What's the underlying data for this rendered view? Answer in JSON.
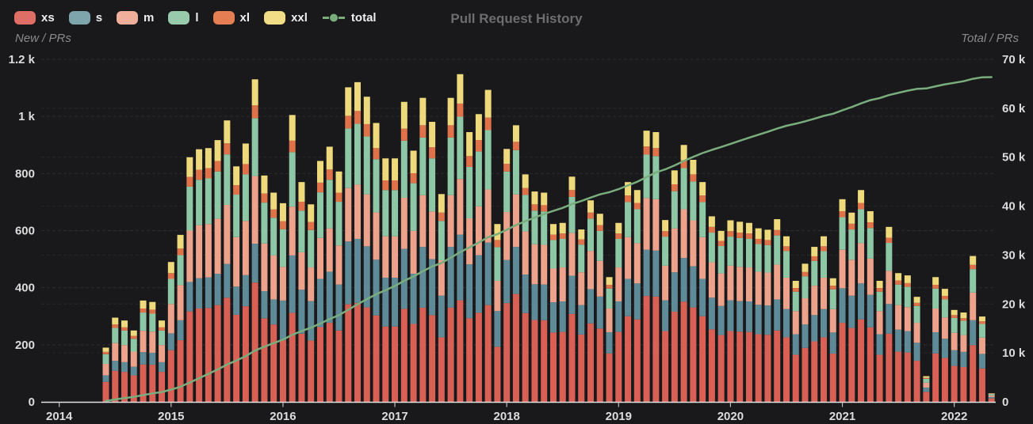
{
  "title": "Pull Request History",
  "left_axis": {
    "title": "New / PRs",
    "max": 1200,
    "tick_values": [
      0,
      200,
      400,
      600,
      800,
      1000,
      1200
    ],
    "tick_labels": [
      "0",
      "200",
      "400",
      "600",
      "800",
      "1 k",
      "1.2 k"
    ]
  },
  "right_axis": {
    "title": "Total / PRs",
    "max": 70000,
    "tick_values": [
      0,
      10000,
      20000,
      30000,
      40000,
      50000,
      60000,
      70000
    ],
    "tick_labels": [
      "0",
      "10 k",
      "20 k",
      "30 k",
      "40 k",
      "50 k",
      "60 k",
      "70 k"
    ]
  },
  "x_axis": {
    "year_labels": [
      "2014",
      "2015",
      "2016",
      "2017",
      "2018",
      "2019",
      "2020",
      "2021",
      "2022"
    ]
  },
  "legend": [
    {
      "label": "xs",
      "swatch": "#df6e66",
      "type": "rect"
    },
    {
      "label": "s",
      "swatch": "#7fa5ac",
      "type": "rect"
    },
    {
      "label": "m",
      "swatch": "#efaf9b",
      "type": "rect"
    },
    {
      "label": "l",
      "swatch": "#97cbac",
      "type": "rect"
    },
    {
      "label": "xl",
      "swatch": "#e57e52",
      "type": "rect"
    },
    {
      "label": "xxl",
      "swatch": "#f0dd85",
      "type": "rect"
    },
    {
      "label": "total",
      "swatch": "#79ad7d",
      "type": "line"
    }
  ],
  "chart_data": {
    "type": "bar",
    "subtype": "stacked-bars-with-cumulative-line",
    "title": "Pull Request History",
    "xlabel": "",
    "ylabel_left": "New / PRs",
    "ylabel_right": "Total / PRs",
    "ylim_left": [
      0,
      1200
    ],
    "ylim_right": [
      0,
      70000
    ],
    "grid": "dashed-faint",
    "legend_position": "top-left",
    "months": [
      "2014-06",
      "2014-07",
      "2014-08",
      "2014-09",
      "2014-10",
      "2014-11",
      "2014-12",
      "2015-01",
      "2015-02",
      "2015-03",
      "2015-04",
      "2015-05",
      "2015-06",
      "2015-07",
      "2015-08",
      "2015-09",
      "2015-10",
      "2015-11",
      "2015-12",
      "2016-01",
      "2016-02",
      "2016-03",
      "2016-04",
      "2016-05",
      "2016-06",
      "2016-07",
      "2016-08",
      "2016-09",
      "2016-10",
      "2016-11",
      "2016-12",
      "2017-01",
      "2017-02",
      "2017-03",
      "2017-04",
      "2017-05",
      "2017-06",
      "2017-07",
      "2017-08",
      "2017-09",
      "2017-10",
      "2017-11",
      "2017-12",
      "2018-01",
      "2018-02",
      "2018-03",
      "2018-04",
      "2018-05",
      "2018-06",
      "2018-07",
      "2018-08",
      "2018-09",
      "2018-10",
      "2018-11",
      "2018-12",
      "2019-01",
      "2019-02",
      "2019-03",
      "2019-04",
      "2019-05",
      "2019-06",
      "2019-07",
      "2019-08",
      "2019-09",
      "2019-10",
      "2019-11",
      "2019-12",
      "2020-01",
      "2020-02",
      "2020-03",
      "2020-04",
      "2020-05",
      "2020-06",
      "2020-07",
      "2020-08",
      "2020-09",
      "2020-10",
      "2020-11",
      "2020-12",
      "2021-01",
      "2021-02",
      "2021-03",
      "2021-04",
      "2021-05",
      "2021-06",
      "2021-07",
      "2021-08",
      "2021-09",
      "2021-10",
      "2021-11",
      "2021-12",
      "2022-01",
      "2022-02",
      "2022-03",
      "2022-04",
      "2022-05"
    ],
    "series": [
      {
        "name": "xs",
        "color": "#d96055",
        "values": [
          70,
          109,
          105,
          93,
          131,
          130,
          105,
          181,
          216,
          317,
          327,
          329,
          339,
          365,
          305,
          335,
          418,
          293,
          271,
          216,
          312,
          239,
          215,
          262,
          277,
          250,
          342,
          347,
          331,
          303,
          264,
          264,
          326,
          273,
          330,
          304,
          226,
          330,
          356,
          293,
          312,
          339,
          193,
          346,
          378,
          311,
          287,
          286,
          243,
          245,
          308,
          236,
          275,
          257,
          170,
          245,
          300,
          289,
          371,
          369,
          248,
          316,
          351,
          331,
          300,
          254,
          234,
          248,
          246,
          245,
          237,
          235,
          250,
          226,
          165,
          189,
          212,
          226,
          169,
          277,
          259,
          289,
          261,
          165,
          239,
          176,
          173,
          144,
          35,
          170,
          154,
          126,
          122,
          199,
          117,
          12
        ]
      },
      {
        "name": "s",
        "color": "#5e8b97",
        "values": [
          23,
          35,
          34,
          30,
          43,
          42,
          34,
          59,
          70,
          103,
          106,
          107,
          110,
          118,
          99,
          109,
          136,
          95,
          88,
          139,
          201,
          154,
          138,
          169,
          179,
          161,
          220,
          224,
          214,
          195,
          171,
          171,
          210,
          176,
          213,
          196,
          146,
          213,
          230,
          189,
          202,
          219,
          125,
          151,
          165,
          135,
          125,
          125,
          106,
          107,
          134,
          103,
          120,
          112,
          74,
          107,
          131,
          126,
          162,
          161,
          108,
          138,
          153,
          144,
          131,
          111,
          102,
          108,
          107,
          107,
          103,
          103,
          109,
          99,
          72,
          82,
          92,
          99,
          74,
          121,
          113,
          126,
          114,
          72,
          104,
          77,
          75,
          63,
          15,
          74,
          67,
          55,
          53,
          87,
          51,
          5
        ]
      },
      {
        "name": "m",
        "color": "#eca28b",
        "values": [
          40,
          62,
          60,
          53,
          75,
          74,
          60,
          103,
          123,
          180,
          186,
          187,
          193,
          207,
          173,
          190,
          237,
          167,
          154,
          118,
          171,
          131,
          118,
          143,
          152,
          137,
          187,
          190,
          182,
          166,
          145,
          145,
          179,
          150,
          181,
          167,
          124,
          181,
          195,
          161,
          171,
          186,
          106,
          168,
          184,
          151,
          140,
          139,
          118,
          119,
          150,
          115,
          134,
          125,
          83,
          119,
          146,
          141,
          181,
          180,
          121,
          154,
          171,
          161,
          146,
          124,
          114,
          121,
          120,
          119,
          116,
          115,
          122,
          110,
          81,
          92,
          103,
          110,
          82,
          135,
          126,
          141,
          127,
          81,
          116,
          86,
          84,
          70,
          17,
          83,
          75,
          61,
          59,
          97,
          57,
          6
        ]
      },
      {
        "name": "l",
        "color": "#8ec7a5",
        "values": [
          34,
          53,
          51,
          45,
          64,
          63,
          51,
          88,
          105,
          154,
          159,
          160,
          165,
          177,
          149,
          163,
          203,
          143,
          132,
          132,
          191,
          146,
          131,
          160,
          170,
          153,
          209,
          213,
          203,
          186,
          162,
          162,
          200,
          167,
          202,
          186,
          138,
          202,
          218,
          180,
          192,
          208,
          118,
          142,
          155,
          128,
          118,
          117,
          100,
          100,
          126,
          97,
          113,
          105,
          70,
          100,
          123,
          119,
          152,
          151,
          102,
          130,
          144,
          136,
          123,
          104,
          96,
          102,
          101,
          100,
          97,
          96,
          102,
          93,
          68,
          77,
          87,
          93,
          69,
          114,
          106,
          119,
          107,
          68,
          98,
          72,
          71,
          59,
          14,
          70,
          63,
          52,
          50,
          82,
          48,
          5
        ]
      },
      {
        "name": "xl",
        "color": "#e0724a",
        "values": [
          8,
          12,
          11,
          10,
          14,
          14,
          11,
          20,
          23,
          34,
          35,
          36,
          37,
          39,
          33,
          36,
          45,
          32,
          29,
          28,
          40,
          31,
          28,
          34,
          36,
          32,
          44,
          45,
          43,
          39,
          34,
          34,
          42,
          35,
          43,
          39,
          29,
          43,
          46,
          38,
          40,
          44,
          25,
          27,
          29,
          24,
          22,
          22,
          19,
          19,
          24,
          18,
          21,
          20,
          13,
          19,
          23,
          22,
          29,
          28,
          19,
          24,
          27,
          25,
          23,
          20,
          18,
          19,
          19,
          19,
          18,
          18,
          19,
          17,
          13,
          15,
          16,
          17,
          13,
          21,
          20,
          22,
          20,
          13,
          18,
          14,
          13,
          11,
          3,
          13,
          12,
          10,
          9,
          15,
          9,
          1
        ]
      },
      {
        "name": "xxl",
        "color": "#eed97c",
        "values": [
          15,
          24,
          24,
          19,
          28,
          27,
          24,
          39,
          48,
          69,
          72,
          70,
          73,
          80,
          66,
          72,
          91,
          63,
          59,
          63,
          90,
          69,
          62,
          76,
          80,
          74,
          100,
          101,
          96,
          88,
          77,
          77,
          94,
          79,
          96,
          89,
          65,
          96,
          103,
          84,
          91,
          97,
          56,
          52,
          58,
          48,
          45,
          44,
          37,
          37,
          47,
          35,
          43,
          40,
          27,
          37,
          47,
          45,
          55,
          56,
          39,
          49,
          54,
          51,
          47,
          37,
          35,
          38,
          38,
          37,
          37,
          36,
          38,
          35,
          25,
          29,
          33,
          35,
          26,
          42,
          39,
          45,
          39,
          25,
          38,
          26,
          27,
          21,
          6,
          27,
          25,
          18,
          20,
          31,
          17,
          1
        ]
      }
    ],
    "line_series": {
      "name": "total",
      "color": "#79ad7d",
      "axis": "right",
      "definition": "cumulative sum of monthly totals",
      "end_value": 66359
    }
  }
}
